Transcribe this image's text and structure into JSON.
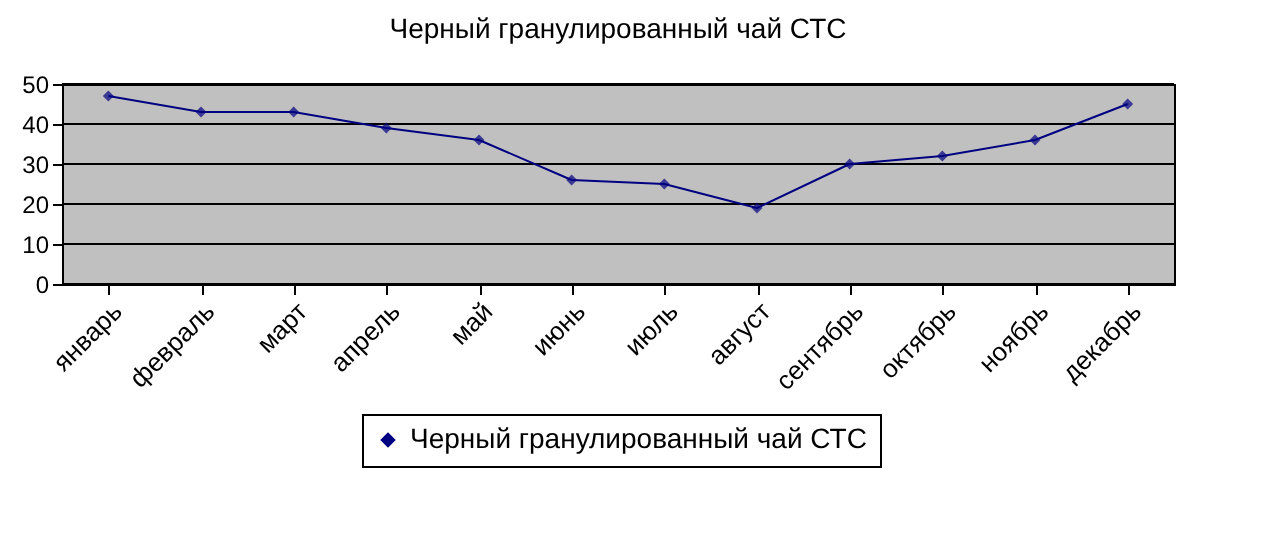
{
  "chart_data": {
    "type": "line",
    "title": "Черный гранулированный чай СТС",
    "categories": [
      "январь",
      "февраль",
      "март",
      "апрель",
      "май",
      "июнь",
      "июль",
      "август",
      "сентябрь",
      "октябрь",
      "ноябрь",
      "декабрь"
    ],
    "series": [
      {
        "name": "Черный гранулированный чай СТС",
        "color": "#000080",
        "values": [
          47,
          43,
          43,
          39,
          36,
          26,
          25,
          19,
          30,
          32,
          36,
          45
        ]
      }
    ],
    "ylim": [
      0,
      50
    ],
    "yticks": [
      0,
      10,
      20,
      30,
      40,
      50
    ],
    "grid": "y",
    "legend": "bottom",
    "marker": "diamond",
    "line_style": "solid"
  }
}
